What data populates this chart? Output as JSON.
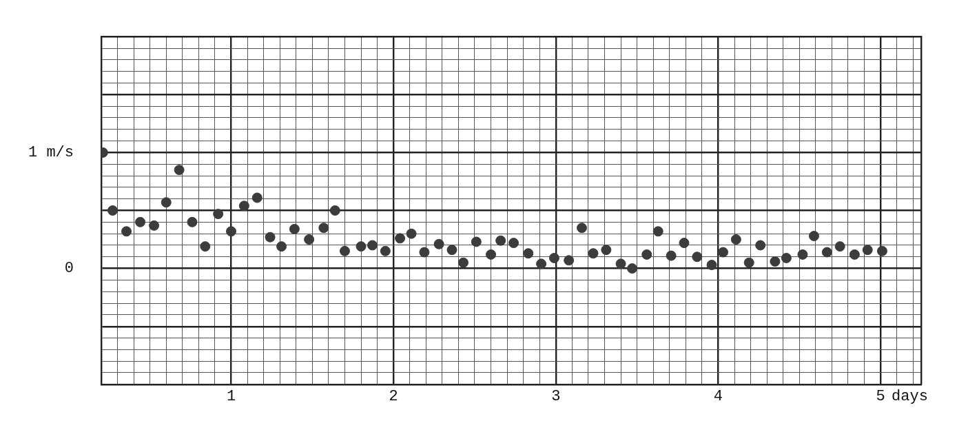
{
  "chart_data": {
    "type": "scatter",
    "xlabel": "days",
    "x": [
      0.21,
      0.27,
      0.355,
      0.44,
      0.525,
      0.6,
      0.68,
      0.76,
      0.84,
      0.92,
      1.0,
      1.08,
      1.16,
      1.24,
      1.31,
      1.39,
      1.48,
      1.57,
      1.64,
      1.7,
      1.8,
      1.87,
      1.95,
      2.04,
      2.11,
      2.19,
      2.28,
      2.36,
      2.43,
      2.51,
      2.6,
      2.66,
      2.74,
      2.83,
      2.91,
      2.99,
      3.08,
      3.16,
      3.23,
      3.31,
      3.4,
      3.47,
      3.56,
      3.63,
      3.71,
      3.79,
      3.87,
      3.96,
      4.03,
      4.11,
      4.19,
      4.26,
      4.35,
      4.42,
      4.52,
      4.59,
      4.67,
      4.75,
      4.84,
      4.92,
      5.01
    ],
    "series": [
      {
        "color": "#3c3c3c",
        "values": [
          1.0,
          0.5,
          0.32,
          0.4,
          0.37,
          0.57,
          0.85,
          0.4,
          0.19,
          0.47,
          0.32,
          0.54,
          0.61,
          0.27,
          0.19,
          0.34,
          0.25,
          0.35,
          0.5,
          0.15,
          0.19,
          0.2,
          0.15,
          0.26,
          0.3,
          0.14,
          0.21,
          0.16,
          0.05,
          0.23,
          0.12,
          0.24,
          0.22,
          0.13,
          0.04,
          0.09,
          0.07,
          0.35,
          0.13,
          0.16,
          0.04,
          0.0,
          0.12,
          0.32,
          0.11,
          0.22,
          0.1,
          0.03,
          0.14,
          0.25,
          0.05,
          0.2,
          0.06,
          0.09,
          0.12,
          0.28,
          0.14,
          0.19,
          0.12,
          0.16,
          0.15
        ]
      }
    ],
    "xlim": [
      0.2,
      5.25
    ],
    "ylim": [
      -1,
      2
    ],
    "xticks": [
      {
        "value": 0.3,
        "label": null
      },
      {
        "value": 0.4,
        "label": null
      },
      {
        "value": 0.5,
        "label": null
      },
      {
        "value": 0.6,
        "label": null
      },
      {
        "value": 0.7,
        "label": null
      },
      {
        "value": 0.8,
        "label": null
      },
      {
        "value": 0.9,
        "label": null
      },
      1,
      {
        "value": 1.1,
        "label": null
      },
      {
        "value": 1.2,
        "label": null
      },
      {
        "value": 1.3,
        "label": null
      },
      {
        "value": 1.4,
        "label": null
      },
      {
        "value": 1.5,
        "label": null
      },
      {
        "value": 1.6,
        "label": null
      },
      {
        "value": 1.7,
        "label": null
      },
      {
        "value": 1.8,
        "label": null
      },
      {
        "value": 1.9,
        "label": null
      },
      2,
      {
        "value": 2.1,
        "label": null
      },
      {
        "value": 2.2,
        "label": null
      },
      {
        "value": 2.3,
        "label": null
      },
      {
        "value": 2.4,
        "label": null
      },
      {
        "value": 2.5,
        "label": null
      },
      {
        "value": 2.6,
        "label": null
      },
      {
        "value": 2.7,
        "label": null
      },
      {
        "value": 2.8,
        "label": null
      },
      {
        "value": 2.9,
        "label": null
      },
      3,
      {
        "value": 3.1,
        "label": null
      },
      {
        "value": 3.2,
        "label": null
      },
      {
        "value": 3.3,
        "label": null
      },
      {
        "value": 3.4,
        "label": null
      },
      {
        "value": 3.5,
        "label": null
      },
      {
        "value": 3.6,
        "label": null
      },
      {
        "value": 3.7,
        "label": null
      },
      {
        "value": 3.8,
        "label": null
      },
      {
        "value": 3.9,
        "label": null
      },
      4,
      {
        "value": 4.1,
        "label": null
      },
      {
        "value": 4.2,
        "label": null
      },
      {
        "value": 4.3,
        "label": null
      },
      {
        "value": 4.4,
        "label": null
      },
      {
        "value": 4.5,
        "label": null
      },
      {
        "value": 4.6,
        "label": null
      },
      {
        "value": 4.7,
        "label": null
      },
      {
        "value": 4.8,
        "label": null
      },
      {
        "value": 4.9,
        "label": null
      },
      5,
      {
        "value": 5.1,
        "label": null
      },
      {
        "value": 5.2,
        "label": null
      }
    ],
    "yticks": [
      {
        "value": -0.9,
        "label": null
      },
      {
        "value": -0.8,
        "label": null
      },
      {
        "value": -0.7,
        "label": null
      },
      {
        "value": -0.6,
        "label": null
      },
      {
        "value": -0.5,
        "label": null
      },
      {
        "value": -0.4,
        "label": null
      },
      {
        "value": -0.3,
        "label": null
      },
      {
        "value": -0.2,
        "label": null
      },
      {
        "value": -0.1,
        "label": null
      },
      0,
      {
        "value": 0.1,
        "label": null
      },
      {
        "value": 0.2,
        "label": null
      },
      {
        "value": 0.3,
        "label": null
      },
      {
        "value": 0.4,
        "label": null
      },
      {
        "value": 0.5,
        "label": null
      },
      {
        "value": 0.6,
        "label": null
      },
      {
        "value": 0.7,
        "label": null
      },
      {
        "value": 0.8,
        "label": null
      },
      {
        "value": 0.9,
        "label": null
      },
      {
        "value": 1,
        "label": "1 m/s"
      },
      {
        "value": 1.1,
        "label": null
      },
      {
        "value": 1.2,
        "label": null
      },
      {
        "value": 1.3,
        "label": null
      },
      {
        "value": 1.4,
        "label": null
      },
      {
        "value": 1.5,
        "label": null
      },
      {
        "value": 1.6,
        "label": null
      },
      {
        "value": 1.7,
        "label": null
      },
      {
        "value": 1.8,
        "label": null
      },
      {
        "value": 1.9,
        "label": null
      }
    ],
    "grid": true,
    "marker": "circle",
    "legend": false
  }
}
